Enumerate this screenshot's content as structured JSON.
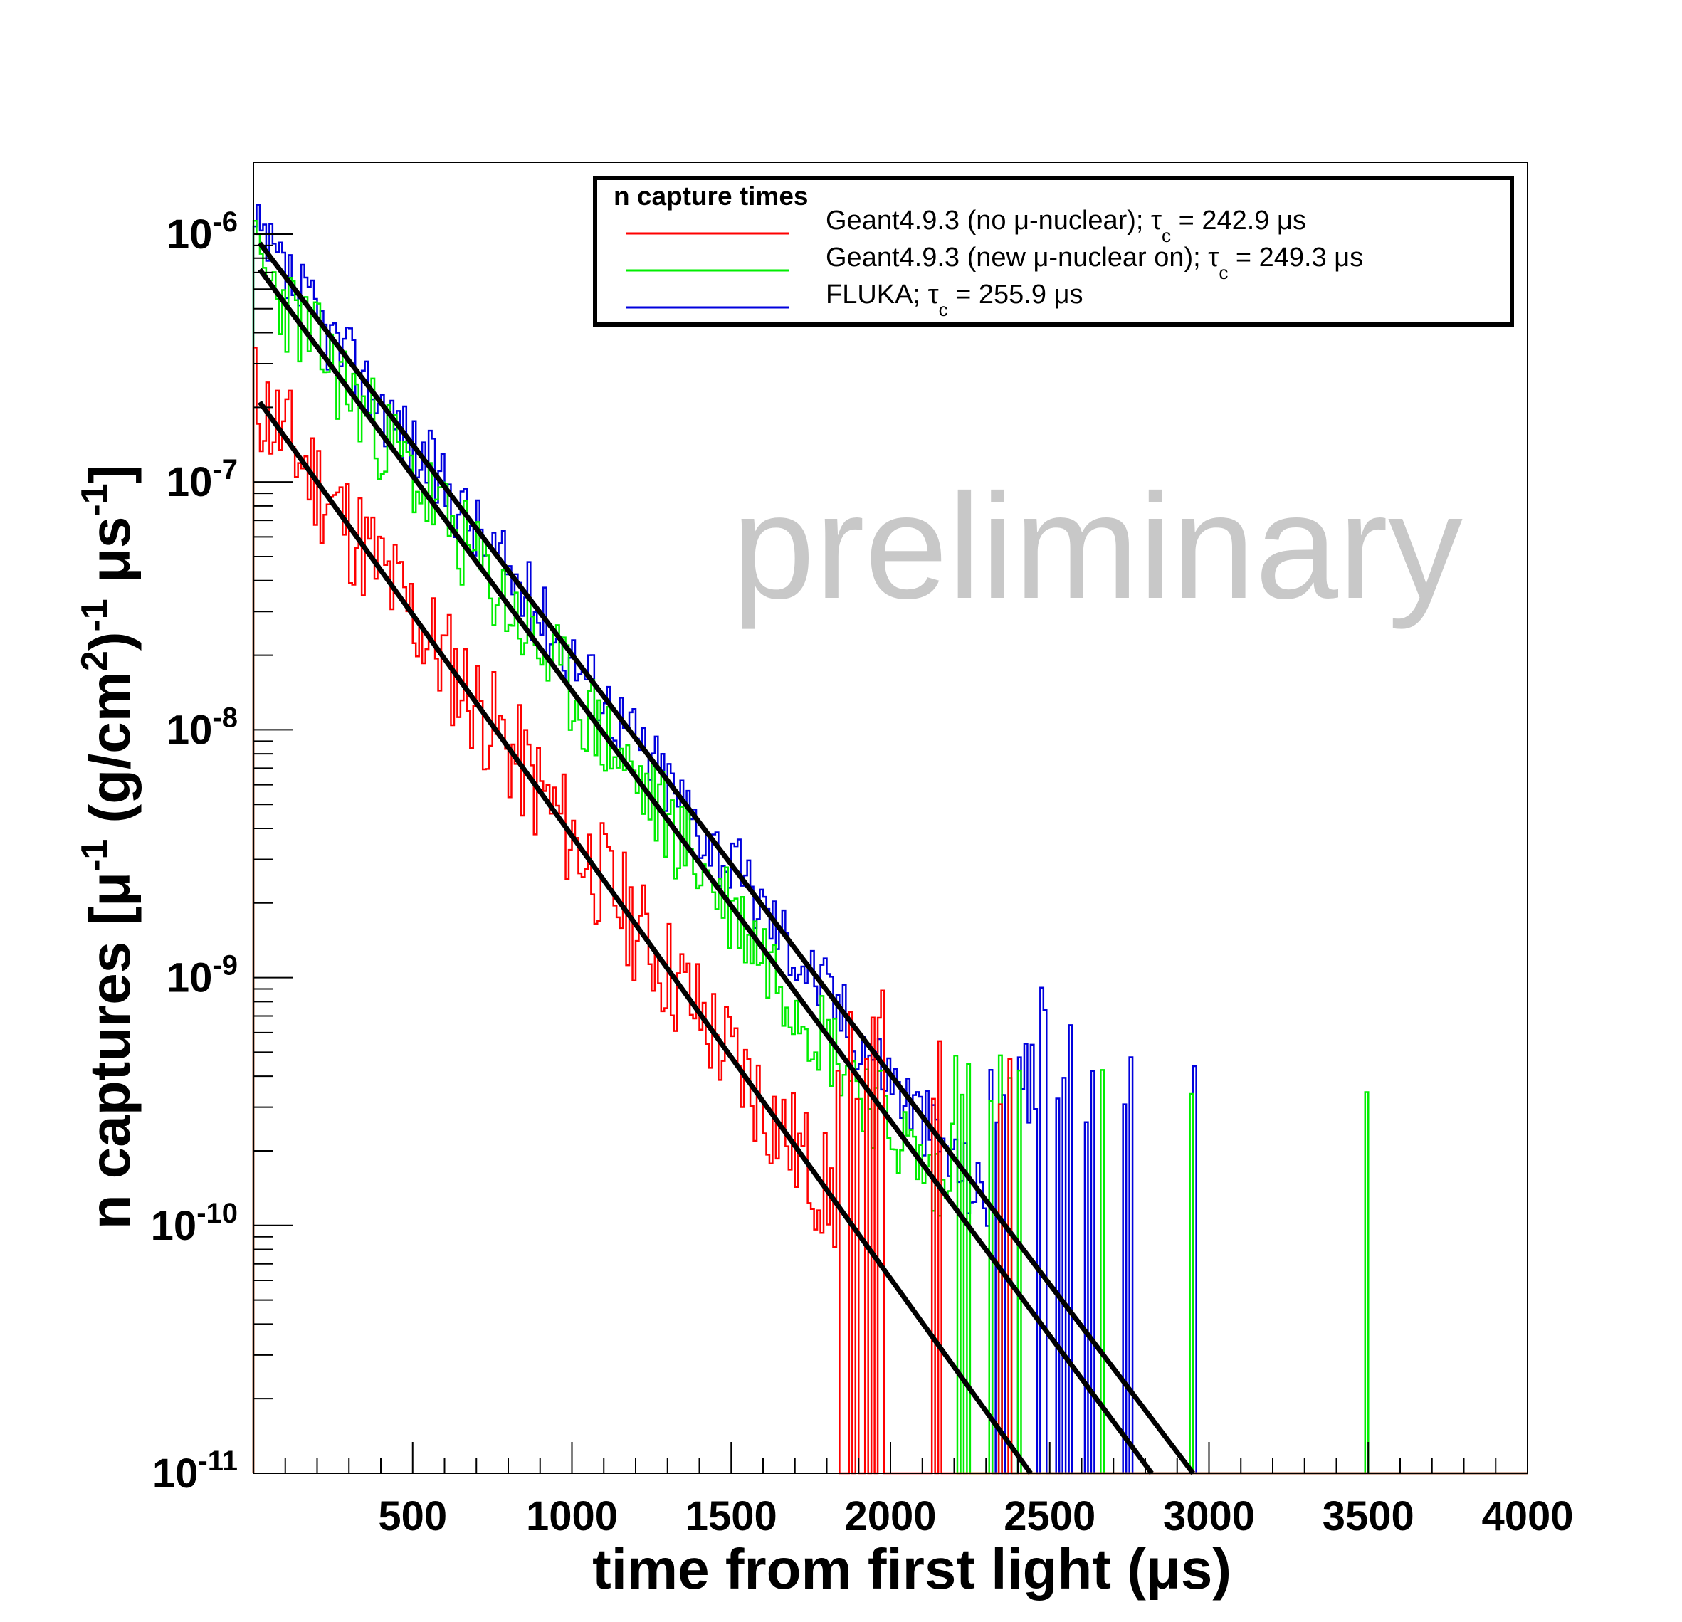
{
  "chart_data": {
    "type": "line",
    "title": "",
    "xlabel": "time from first light (μs)",
    "ylabel_parts": {
      "main": "n captures [μ",
      "sup1": "-1",
      "mid": " (g/cm",
      "sup2": "2",
      "mid2": ")",
      "sup3": "-1",
      "mid3": " μs",
      "sup4": "-1",
      "end": "]"
    },
    "xlim": [
      0,
      4000
    ],
    "ylim": [
      1e-11,
      2e-06
    ],
    "yscale": "log",
    "grid": false,
    "x_ticks": [
      500,
      1000,
      1500,
      2000,
      2500,
      3000,
      3500,
      4000
    ],
    "y_ticks": [
      {
        "value": 1e-11,
        "base": "10",
        "exp": "-11"
      },
      {
        "value": 1e-10,
        "base": "10",
        "exp": "-10"
      },
      {
        "value": 1e-09,
        "base": "10",
        "exp": "-9"
      },
      {
        "value": 1e-08,
        "base": "10",
        "exp": "-8"
      },
      {
        "value": 1e-07,
        "base": "10",
        "exp": "-7"
      },
      {
        "value": 1e-06,
        "base": "10",
        "exp": "-6"
      }
    ],
    "watermark": "preliminary",
    "legend": {
      "header": "n capture times",
      "position": "top-right",
      "entries": [
        {
          "color": "#ff0000",
          "label": "Geant4.9.3 (no μ-nuclear);  τ",
          "sub": "c",
          "tail": " = 242.9 μs"
        },
        {
          "color": "#00ee00",
          "label": "Geant4.9.3 (new μ-nuclear on);  τ",
          "sub": "c",
          "tail": " = 249.3 μs"
        },
        {
          "color": "#0000dd",
          "label": "FLUKA;  τ",
          "sub": "c",
          "tail": " = 255.9 μs"
        }
      ]
    },
    "series": [
      {
        "name": "Geant4.9.3 (no μ-nuclear)",
        "color": "#ff0000",
        "tau": 242.9,
        "fit_start": [
          20,
          2.1e-07
        ],
        "fit_end": [
          2440,
          1e-11
        ],
        "last_x": 2450,
        "noise": 0.55,
        "seed": 11
      },
      {
        "name": "Geant4.9.3 (new μ-nuclear on)",
        "color": "#00ee00",
        "tau": 249.3,
        "fit_start": [
          20,
          7.2e-07
        ],
        "fit_end": [
          2820,
          1e-11
        ],
        "last_x": 3800,
        "noise": 0.45,
        "seed": 23
      },
      {
        "name": "FLUKA",
        "color": "#0000dd",
        "tau": 255.9,
        "fit_start": [
          20,
          9.2e-07
        ],
        "fit_end": [
          2950,
          1e-11
        ],
        "last_x": 3700,
        "noise": 0.35,
        "seed": 37
      }
    ]
  }
}
